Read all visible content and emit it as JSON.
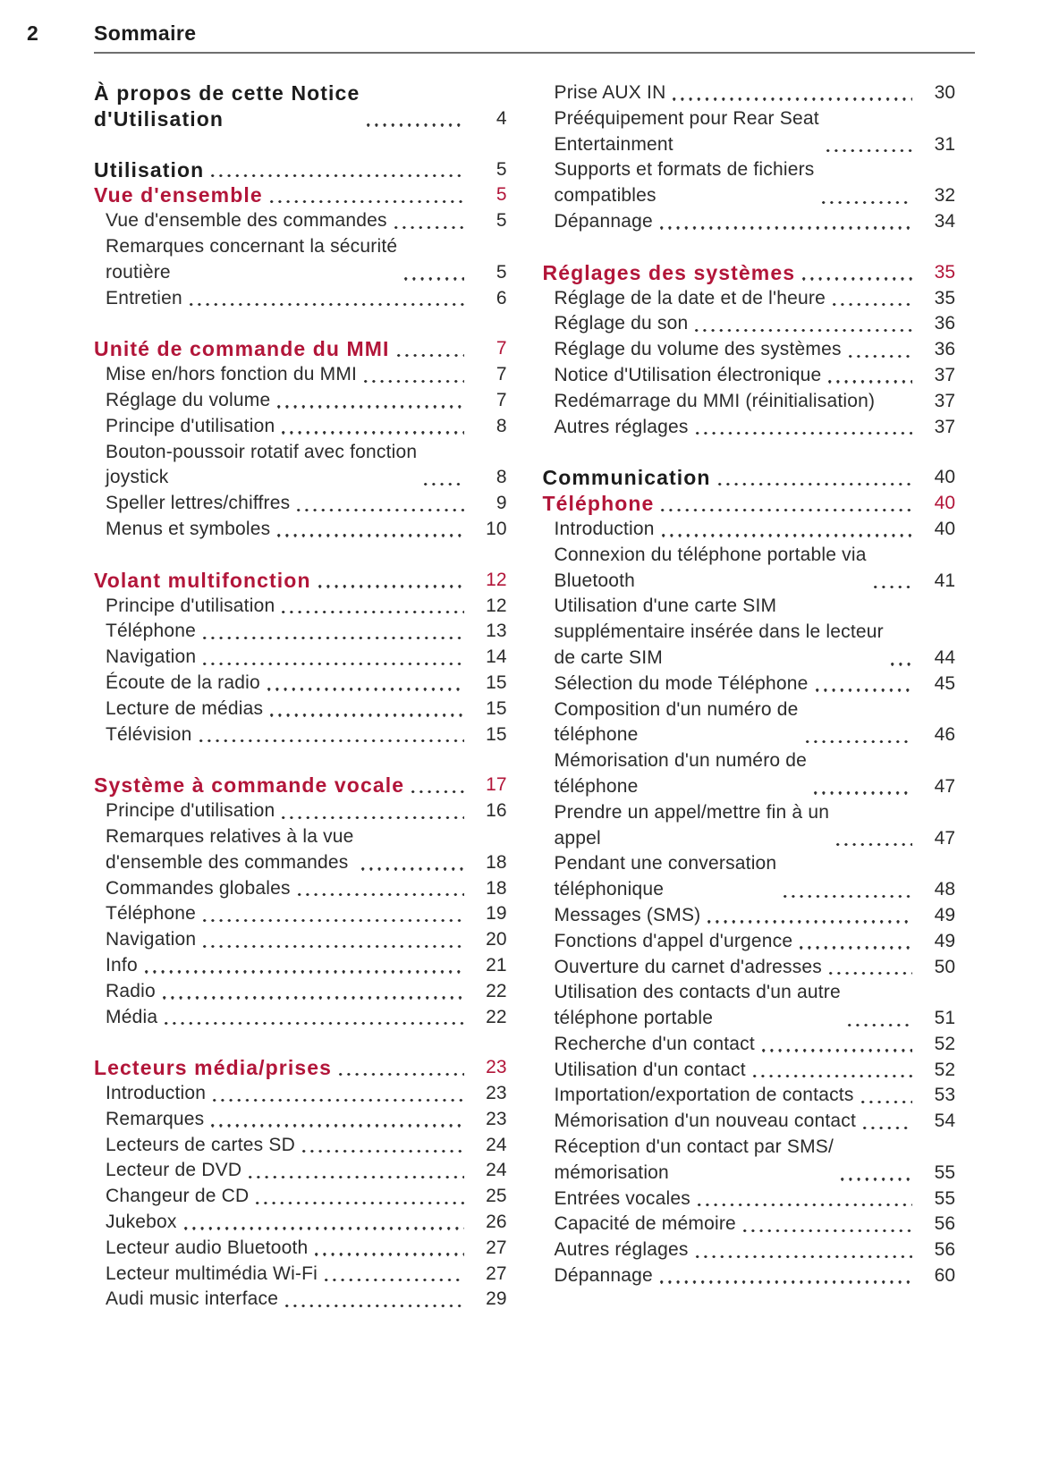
{
  "page": {
    "number": "2",
    "title": "Sommaire"
  },
  "colors": {
    "accent": "#b21539",
    "text": "#2b2b2b",
    "rule": "#6f6f6f"
  },
  "columns": [
    {
      "groups": [
        {
          "entries": [
            {
              "label": "À propos de cette Notice\nd'Utilisation",
              "page": "4",
              "type": "title"
            }
          ]
        },
        {
          "entries": [
            {
              "label": "Utilisation",
              "page": "5",
              "type": "title"
            },
            {
              "label": "Vue d'ensemble",
              "page": "5",
              "type": "section"
            },
            {
              "label": "Vue d'ensemble des commandes",
              "page": "5",
              "type": "item"
            },
            {
              "label": "Remarques concernant la sécurité\nroutière",
              "page": "5",
              "type": "item"
            },
            {
              "label": "Entretien",
              "page": "6",
              "type": "item"
            }
          ]
        },
        {
          "entries": [
            {
              "label": "Unité de commande du MMI",
              "page": "7",
              "type": "section"
            },
            {
              "label": "Mise en/hors fonction du MMI",
              "page": "7",
              "type": "item"
            },
            {
              "label": "Réglage du volume",
              "page": "7",
              "type": "item"
            },
            {
              "label": "Principe d'utilisation",
              "page": "8",
              "type": "item"
            },
            {
              "label": "Bouton-poussoir rotatif avec fonction\njoystick",
              "page": "8",
              "type": "item"
            },
            {
              "label": "Speller lettres/chiffres",
              "page": "9",
              "type": "item"
            },
            {
              "label": "Menus et symboles",
              "page": "10",
              "type": "item"
            }
          ]
        },
        {
          "entries": [
            {
              "label": "Volant multifonction",
              "page": "12",
              "type": "section"
            },
            {
              "label": "Principe d'utilisation",
              "page": "12",
              "type": "item"
            },
            {
              "label": "Téléphone",
              "page": "13",
              "type": "item"
            },
            {
              "label": "Navigation",
              "page": "14",
              "type": "item"
            },
            {
              "label": "Écoute de la radio",
              "page": "15",
              "type": "item"
            },
            {
              "label": "Lecture de médias",
              "page": "15",
              "type": "item"
            },
            {
              "label": "Télévision",
              "page": "15",
              "type": "item"
            }
          ]
        },
        {
          "entries": [
            {
              "label": "Système à commande vocale",
              "page": "17",
              "type": "section"
            },
            {
              "label": "Principe d'utilisation",
              "page": "16",
              "type": "item"
            },
            {
              "label": "Remarques relatives à la vue\nd'ensemble des commandes",
              "page": "18",
              "type": "item"
            },
            {
              "label": "Commandes globales",
              "page": "18",
              "type": "item"
            },
            {
              "label": "Téléphone",
              "page": "19",
              "type": "item"
            },
            {
              "label": "Navigation",
              "page": "20",
              "type": "item"
            },
            {
              "label": "Info",
              "page": "21",
              "type": "item"
            },
            {
              "label": "Radio",
              "page": "22",
              "type": "item"
            },
            {
              "label": "Média",
              "page": "22",
              "type": "item"
            }
          ]
        },
        {
          "entries": [
            {
              "label": "Lecteurs média/prises",
              "page": "23",
              "type": "section"
            },
            {
              "label": "Introduction",
              "page": "23",
              "type": "item"
            },
            {
              "label": "Remarques",
              "page": "23",
              "type": "item"
            },
            {
              "label": "Lecteurs de cartes SD",
              "page": "24",
              "type": "item"
            },
            {
              "label": "Lecteur de DVD",
              "page": "24",
              "type": "item"
            },
            {
              "label": "Changeur de CD",
              "page": "25",
              "type": "item"
            },
            {
              "label": "Jukebox",
              "page": "26",
              "type": "item"
            },
            {
              "label": "Lecteur audio Bluetooth",
              "page": "27",
              "type": "item"
            },
            {
              "label": "Lecteur multimédia Wi-Fi",
              "page": "27",
              "type": "item"
            },
            {
              "label": "Audi music interface",
              "page": "29",
              "type": "item"
            }
          ]
        }
      ]
    },
    {
      "groups": [
        {
          "entries": [
            {
              "label": "Prise AUX IN",
              "page": "30",
              "type": "item"
            },
            {
              "label": "Prééquipement pour Rear Seat\nEntertainment",
              "page": "31",
              "type": "item"
            },
            {
              "label": "Supports et formats de fichiers\ncompatibles",
              "page": "32",
              "type": "item"
            },
            {
              "label": "Dépannage",
              "page": "34",
              "type": "item"
            }
          ]
        },
        {
          "entries": [
            {
              "label": "Réglages des systèmes",
              "page": "35",
              "type": "section"
            },
            {
              "label": "Réglage de la date et de l'heure",
              "page": "35",
              "type": "item"
            },
            {
              "label": "Réglage du son",
              "page": "36",
              "type": "item"
            },
            {
              "label": "Réglage du volume des systèmes",
              "page": "36",
              "type": "item"
            },
            {
              "label": "Notice d'Utilisation électronique",
              "page": "37",
              "type": "item"
            },
            {
              "label": "Redémarrage du MMI (réinitialisation)",
              "page": "37",
              "type": "item",
              "dots": false
            },
            {
              "label": "Autres réglages",
              "page": "37",
              "type": "item"
            }
          ]
        },
        {
          "entries": [
            {
              "label": "Communication",
              "page": "40",
              "type": "title"
            },
            {
              "label": "Téléphone",
              "page": "40",
              "type": "section"
            },
            {
              "label": "Introduction",
              "page": "40",
              "type": "item"
            },
            {
              "label": "Connexion du téléphone portable via\nBluetooth",
              "page": "41",
              "type": "item"
            },
            {
              "label": "Utilisation d'une carte SIM\nsupplémentaire insérée dans le lecteur\nde carte SIM",
              "page": "44",
              "type": "item"
            },
            {
              "label": "Sélection du mode Téléphone",
              "page": "45",
              "type": "item"
            },
            {
              "label": "Composition d'un numéro de\ntéléphone",
              "page": "46",
              "type": "item"
            },
            {
              "label": "Mémorisation d'un numéro de\ntéléphone",
              "page": "47",
              "type": "item"
            },
            {
              "label": "Prendre un appel/mettre fin à un\nappel",
              "page": "47",
              "type": "item"
            },
            {
              "label": "Pendant une conversation\ntéléphonique",
              "page": "48",
              "type": "item"
            },
            {
              "label": "Messages (SMS)",
              "page": "49",
              "type": "item"
            },
            {
              "label": "Fonctions d'appel d'urgence",
              "page": "49",
              "type": "item"
            },
            {
              "label": "Ouverture du carnet d'adresses",
              "page": "50",
              "type": "item"
            },
            {
              "label": "Utilisation des contacts d'un autre\ntéléphone portable",
              "page": "51",
              "type": "item"
            },
            {
              "label": "Recherche d'un contact",
              "page": "52",
              "type": "item"
            },
            {
              "label": "Utilisation d'un contact",
              "page": "52",
              "type": "item"
            },
            {
              "label": "Importation/exportation de contacts",
              "page": "53",
              "type": "item"
            },
            {
              "label": "Mémorisation d'un nouveau contact",
              "page": "54",
              "type": "item"
            },
            {
              "label": "Réception d'un contact par SMS/\nmémorisation",
              "page": "55",
              "type": "item"
            },
            {
              "label": "Entrées vocales",
              "page": "55",
              "type": "item"
            },
            {
              "label": "Capacité de mémoire",
              "page": "56",
              "type": "item"
            },
            {
              "label": "Autres réglages",
              "page": "56",
              "type": "item"
            },
            {
              "label": "Dépannage",
              "page": "60",
              "type": "item"
            }
          ]
        }
      ]
    }
  ]
}
